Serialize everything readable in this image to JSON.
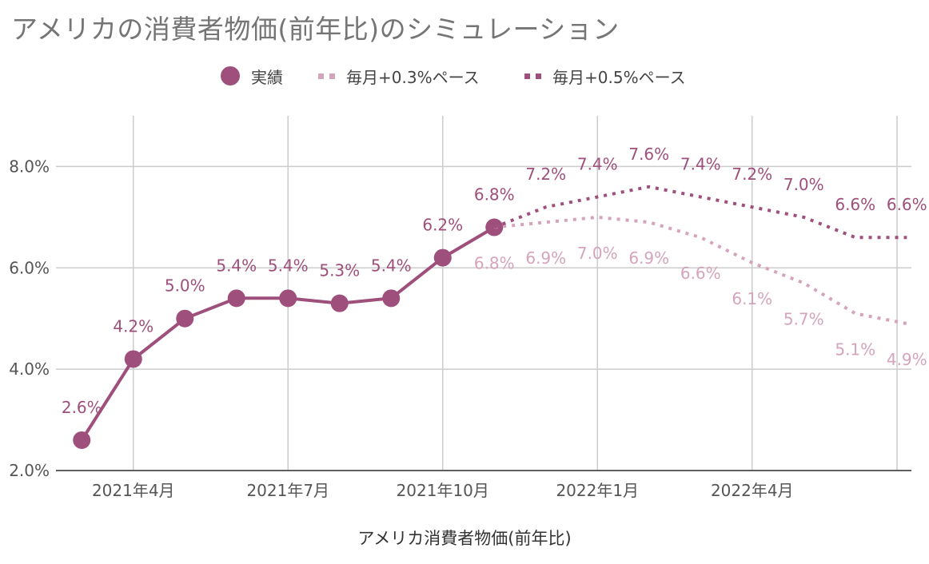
{
  "chart_data": {
    "type": "line",
    "title": "アメリカの消費者物価(前年比)のシミュレーション",
    "xlabel": "アメリカ消費者物価(前年比)",
    "ylabel": "",
    "ylim": [
      2.0,
      9.0
    ],
    "y_ticks": [
      2.0,
      4.0,
      6.0,
      8.0
    ],
    "y_tick_labels": [
      "2.0%",
      "4.0%",
      "6.0%",
      "8.0%"
    ],
    "x_months": [
      "2021-03",
      "2021-04",
      "2021-05",
      "2021-06",
      "2021-07",
      "2021-08",
      "2021-09",
      "2021-10",
      "2021-11",
      "2021-12",
      "2022-01",
      "2022-02",
      "2022-03",
      "2022-04",
      "2022-05",
      "2022-06",
      "2022-07"
    ],
    "x_tick_labels": [
      {
        "month": "2021-04",
        "label": "2021年4月"
      },
      {
        "month": "2021-07",
        "label": "2021年7月"
      },
      {
        "month": "2021-10",
        "label": "2021年10月"
      },
      {
        "month": "2022-01",
        "label": "2022年1月"
      },
      {
        "month": "2022-04",
        "label": "2022年4月"
      }
    ],
    "grid": true,
    "legend_position": "top",
    "series": [
      {
        "name": "実績",
        "style": "solid-markers",
        "color": "#9e4f7b",
        "x": [
          "2021-03",
          "2021-04",
          "2021-05",
          "2021-06",
          "2021-07",
          "2021-08",
          "2021-09",
          "2021-10",
          "2021-11"
        ],
        "values": [
          2.6,
          4.2,
          5.0,
          5.4,
          5.4,
          5.3,
          5.4,
          6.2,
          6.8
        ],
        "labels": [
          "2.6%",
          "4.2%",
          "5.0%",
          "5.4%",
          "5.4%",
          "5.3%",
          "5.4%",
          "6.2%",
          "6.8%"
        ]
      },
      {
        "name": "毎月+0.3%ペース",
        "style": "dotted",
        "color": "#d4a4bc",
        "x": [
          "2021-11",
          "2021-12",
          "2022-01",
          "2022-02",
          "2022-03",
          "2022-04",
          "2022-05",
          "2022-06",
          "2022-07"
        ],
        "values": [
          6.8,
          6.9,
          7.0,
          6.9,
          6.6,
          6.1,
          5.7,
          5.1,
          4.9
        ],
        "labels": [
          "6.8%",
          "6.9%",
          "7.0%",
          "6.9%",
          "6.6%",
          "6.1%",
          "5.7%",
          "5.1%",
          "4.9%"
        ]
      },
      {
        "name": "毎月+0.5%ペース",
        "style": "dotted",
        "color": "#9e4f7b",
        "x": [
          "2021-11",
          "2021-12",
          "2022-01",
          "2022-02",
          "2022-03",
          "2022-04",
          "2022-05",
          "2022-06",
          "2022-07"
        ],
        "values": [
          6.8,
          7.2,
          7.4,
          7.6,
          7.4,
          7.2,
          7.0,
          6.6,
          6.6
        ],
        "labels": [
          "6.8%",
          "7.2%",
          "7.4%",
          "7.6%",
          "7.4%",
          "7.2%",
          "7.0%",
          "6.6%",
          "6.6%"
        ]
      }
    ]
  }
}
